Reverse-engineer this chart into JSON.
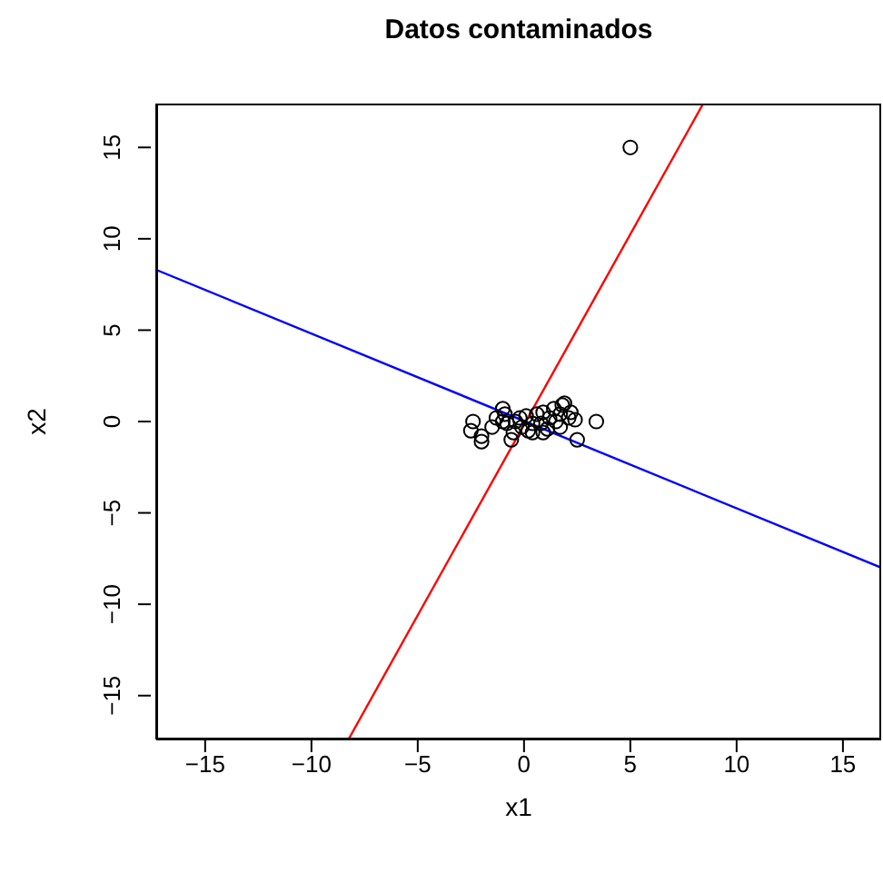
{
  "chart_data": {
    "type": "scatter",
    "title": "Datos contaminados",
    "xlabel": "x1",
    "ylabel": "x2",
    "xlim": [
      -17.3,
      16.8
    ],
    "ylim": [
      -17.4,
      17.4
    ],
    "xticks": [
      -15,
      -10,
      -5,
      0,
      5,
      10,
      15
    ],
    "yticks": [
      -15,
      -10,
      -5,
      0,
      5,
      10,
      15
    ],
    "grid": false,
    "legend": false,
    "marker": "circle",
    "series": [
      {
        "color": "#000000",
        "x": [
          -2.4,
          -2.5,
          -2.0,
          -2.0,
          -1.5,
          -1.3,
          -1.0,
          -0.9,
          -0.8,
          -0.6,
          -0.4,
          -0.2,
          -0.1,
          0.1,
          0.2,
          0.4,
          0.6,
          0.8,
          0.9,
          1.1,
          1.2,
          1.4,
          1.5,
          1.7,
          1.8,
          1.9,
          2.1,
          2.4,
          2.5,
          3.4,
          0.9,
          -0.5,
          0.4,
          1.7,
          -1.0,
          2.2,
          5
        ],
        "values": [
          0.0,
          -0.5,
          -0.8,
          -1.1,
          -0.3,
          0.2,
          0.7,
          0.4,
          -0.1,
          -1.0,
          0.0,
          0.2,
          -0.3,
          0.3,
          -0.5,
          -0.1,
          0.4,
          -0.1,
          0.5,
          -0.4,
          0.2,
          0.7,
          0.0,
          0.4,
          0.9,
          1.0,
          0.2,
          0.1,
          -1.0,
          0.0,
          -0.6,
          -0.6,
          -0.6,
          -0.3,
          0.0,
          0.5,
          15
        ]
      },
      {
        "type": "line",
        "color": "#0000ff",
        "x": [
          -17.3,
          16.8
        ],
        "values": [
          8.3,
          -8.0
        ],
        "marker": "none"
      },
      {
        "type": "line",
        "color": "#ff0000",
        "x": [
          -8.26,
          8.43
        ],
        "values": [
          -17.4,
          17.4
        ],
        "marker": "none"
      }
    ]
  }
}
